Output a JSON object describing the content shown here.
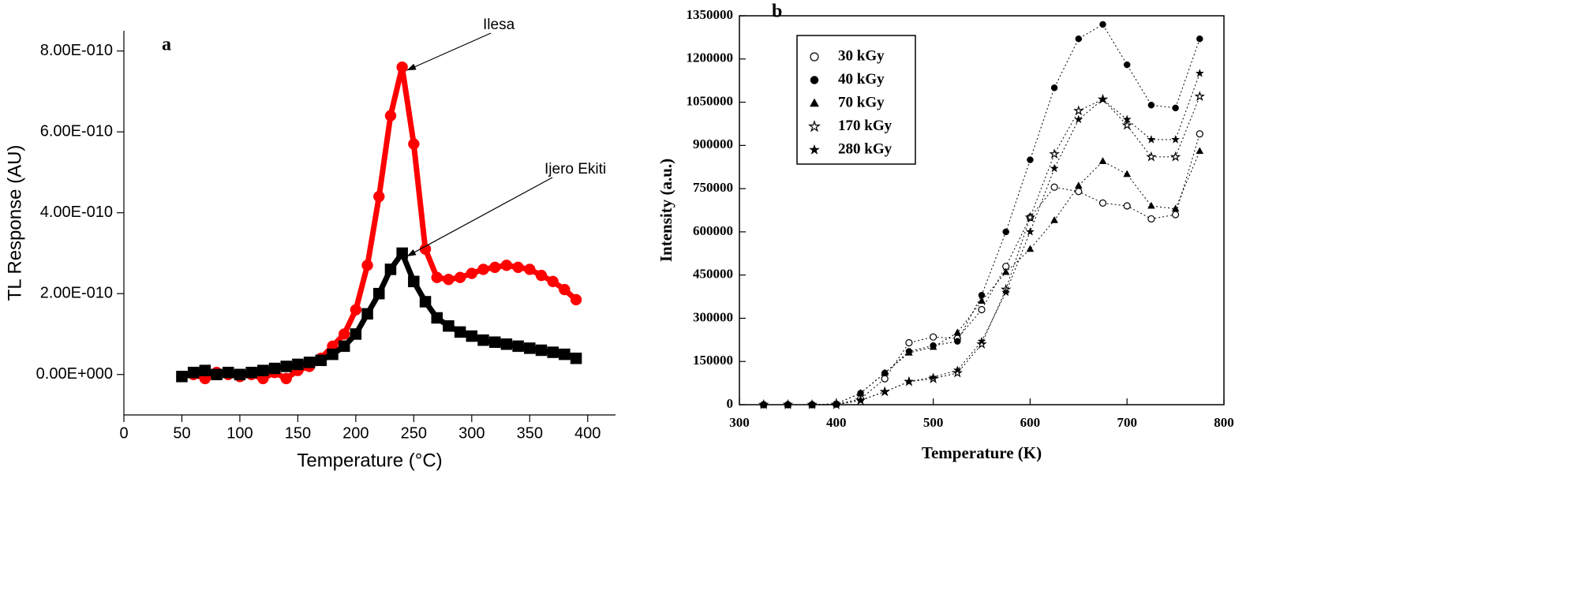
{
  "chart_data": [
    {
      "type": "scatter",
      "panel": "a",
      "x_label": "Temperature (°C)",
      "y_label": "TL Response (AU)",
      "x": [
        50,
        60,
        70,
        80,
        90,
        100,
        110,
        120,
        130,
        140,
        150,
        160,
        170,
        180,
        190,
        200,
        210,
        220,
        230,
        240,
        250,
        260,
        270,
        280,
        290,
        300,
        310,
        320,
        330,
        340,
        350,
        360,
        370,
        380,
        390
      ],
      "series": [
        {
          "name": "Ilesa",
          "color": "#ff0000",
          "marker": "circle",
          "values": [
            -5e-12,
            0,
            -1e-11,
            5e-12,
            0,
            -5e-12,
            0,
            -1e-11,
            5e-12,
            -1e-11,
            1e-11,
            2e-11,
            4e-11,
            7e-11,
            1e-10,
            1.6e-10,
            2.7e-10,
            4.4e-10,
            6.4e-10,
            7.6e-10,
            5.7e-10,
            3.1e-10,
            2.4e-10,
            2.35e-10,
            2.4e-10,
            2.5e-10,
            2.6e-10,
            2.65e-10,
            2.7e-10,
            2.65e-10,
            2.6e-10,
            2.45e-10,
            2.3e-10,
            2.1e-10,
            1.85e-10
          ]
        },
        {
          "name": "Ijero Ekiti",
          "color": "#000000",
          "marker": "square",
          "values": [
            -5e-12,
            5e-12,
            1e-11,
            0,
            5e-12,
            0,
            5e-12,
            1e-11,
            1.5e-11,
            2e-11,
            2.5e-11,
            3e-11,
            3.5e-11,
            5e-11,
            7e-11,
            1e-10,
            1.5e-10,
            2e-10,
            2.6e-10,
            3e-10,
            2.3e-10,
            1.8e-10,
            1.4e-10,
            1.2e-10,
            1.05e-10,
            9.5e-11,
            8.5e-11,
            8e-11,
            7.5e-11,
            7e-11,
            6.5e-11,
            6e-11,
            5.5e-11,
            5e-11,
            4e-11
          ]
        }
      ],
      "xlim": [
        0,
        424
      ],
      "xticks": [
        0,
        50,
        100,
        150,
        200,
        250,
        300,
        350,
        400
      ],
      "ylim": [
        -1e-10,
        8.5e-10
      ],
      "yticks": [
        {
          "value": 0,
          "label": "0.00E+000"
        },
        {
          "value": 2e-10,
          "label": "2.00E-010"
        },
        {
          "value": 4e-10,
          "label": "4.00E-010"
        },
        {
          "value": 6e-10,
          "label": "6.00E-010"
        },
        {
          "value": 8e-10,
          "label": "8.00E-010"
        }
      ],
      "frame": false,
      "legend": null
    },
    {
      "type": "scatter",
      "panel": "b",
      "x_label": "Temperature (K)",
      "y_label": "Intensity (a.u.)",
      "x": [
        325,
        350,
        375,
        400,
        425,
        450,
        475,
        500,
        525,
        550,
        575,
        600,
        625,
        650,
        675,
        700,
        725,
        750,
        775
      ],
      "series": [
        {
          "name": "30 kGy",
          "color": "#000000",
          "marker": "circle-open",
          "values": [
            0,
            0,
            0,
            2000,
            20000,
            90000,
            215000,
            235000,
            230000,
            330000,
            480000,
            650000,
            755000,
            740000,
            700000,
            690000,
            645000,
            660000,
            940000
          ]
        },
        {
          "name": "40 kGy",
          "color": "#000000",
          "marker": "circle",
          "values": [
            0,
            0,
            0,
            3000,
            40000,
            110000,
            185000,
            205000,
            220000,
            380000,
            600000,
            850000,
            1100000,
            1270000,
            1320000,
            1180000,
            1040000,
            1030000,
            1270000
          ]
        },
        {
          "name": "70 kGy",
          "color": "#000000",
          "marker": "triangle",
          "values": [
            0,
            0,
            0,
            3000,
            40000,
            110000,
            180000,
            200000,
            250000,
            360000,
            460000,
            540000,
            640000,
            760000,
            845000,
            800000,
            690000,
            680000,
            880000
          ]
        },
        {
          "name": "170 kGy",
          "color": "#000000",
          "marker": "star-open",
          "values": [
            0,
            0,
            0,
            0,
            15000,
            45000,
            80000,
            90000,
            110000,
            210000,
            400000,
            650000,
            870000,
            1020000,
            1060000,
            970000,
            860000,
            860000,
            1070000
          ]
        },
        {
          "name": "280 kGy",
          "color": "#000000",
          "marker": "star",
          "values": [
            0,
            0,
            0,
            0,
            15000,
            45000,
            80000,
            95000,
            120000,
            220000,
            390000,
            600000,
            820000,
            990000,
            1060000,
            990000,
            920000,
            920000,
            1150000
          ]
        }
      ],
      "xlim": [
        300,
        800
      ],
      "xticks": [
        300,
        400,
        500,
        600,
        700,
        800
      ],
      "ylim": [
        0,
        1350000
      ],
      "yticks": [
        0,
        150000,
        300000,
        450000,
        600000,
        750000,
        900000,
        1050000,
        1200000,
        1350000
      ],
      "frame": true,
      "legend": "upper left"
    }
  ]
}
